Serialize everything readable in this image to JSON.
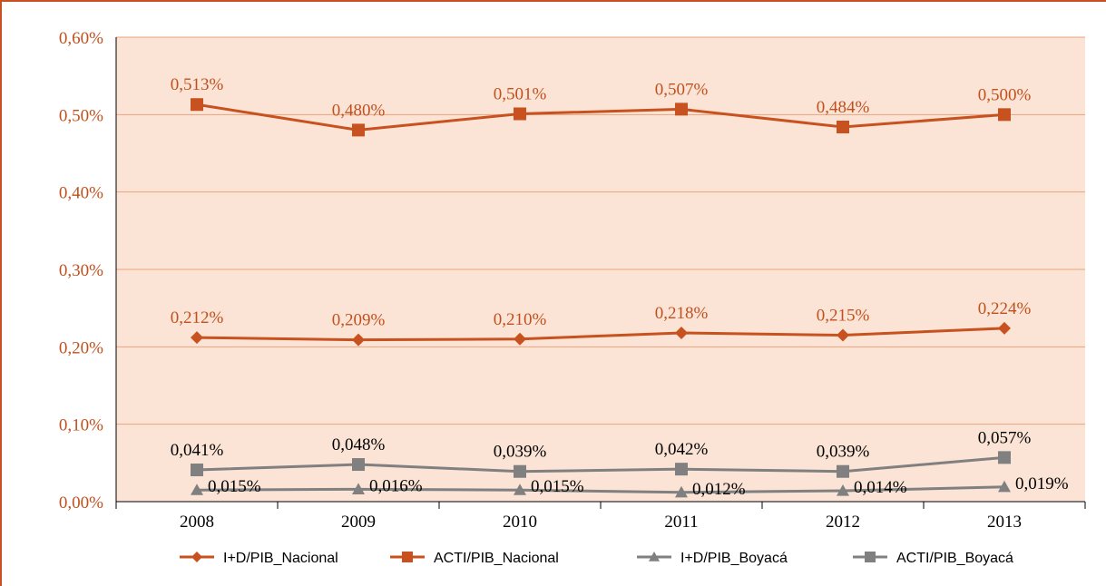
{
  "chart_data": {
    "type": "line",
    "title": "",
    "xlabel": "",
    "ylabel": "",
    "categories": [
      "2008",
      "2009",
      "2010",
      "2011",
      "2012",
      "2013"
    ],
    "ylim": [
      0,
      0.6
    ],
    "yticks": [
      0,
      0.1,
      0.2,
      0.3,
      0.4,
      0.5,
      0.6
    ],
    "ytick_labels": [
      "0,00%",
      "0,10%",
      "0,20%",
      "0,30%",
      "0,40%",
      "0,50%",
      "0,60%"
    ],
    "grid": true,
    "legend_position": "bottom",
    "plot_background": "#fbe4d5",
    "gridline_color": "#e9a37c",
    "series": [
      {
        "name": "I+D/PIB_Nacional",
        "marker": "diamond",
        "color": "#c8521f",
        "label_color": "#c0501e",
        "values": [
          0.212,
          0.209,
          0.21,
          0.218,
          0.215,
          0.224
        ],
        "labels": [
          "0,212%",
          "0,209%",
          "0,210%",
          "0,218%",
          "0,215%",
          "0,224%"
        ],
        "label_side": "above"
      },
      {
        "name": "ACTI/PIB_Nacional",
        "marker": "square",
        "color": "#c8521f",
        "label_color": "#c0501e",
        "values": [
          0.513,
          0.48,
          0.501,
          0.507,
          0.484,
          0.5
        ],
        "labels": [
          "0,513%",
          "0,480%",
          "0,501%",
          "0,507%",
          "0,484%",
          "0,500%"
        ],
        "label_side": "above"
      },
      {
        "name": "I+D/PIB_Boyacá",
        "marker": "triangle",
        "color": "#808080",
        "label_color": "#000000",
        "values": [
          0.015,
          0.016,
          0.015,
          0.012,
          0.014,
          0.019
        ],
        "labels": [
          "0,015%",
          "0,016%",
          "0,015%",
          "0,012%",
          "0,014%",
          "0,019%"
        ],
        "label_side": "right"
      },
      {
        "name": "ACTI/PIB_Boyacá",
        "marker": "square",
        "color": "#808080",
        "label_color": "#000000",
        "values": [
          0.041,
          0.048,
          0.039,
          0.042,
          0.039,
          0.057
        ],
        "labels": [
          "0,041%",
          "0,048%",
          "0,039%",
          "0,042%",
          "0,039%",
          "0,057%"
        ],
        "label_side": "above"
      }
    ]
  }
}
